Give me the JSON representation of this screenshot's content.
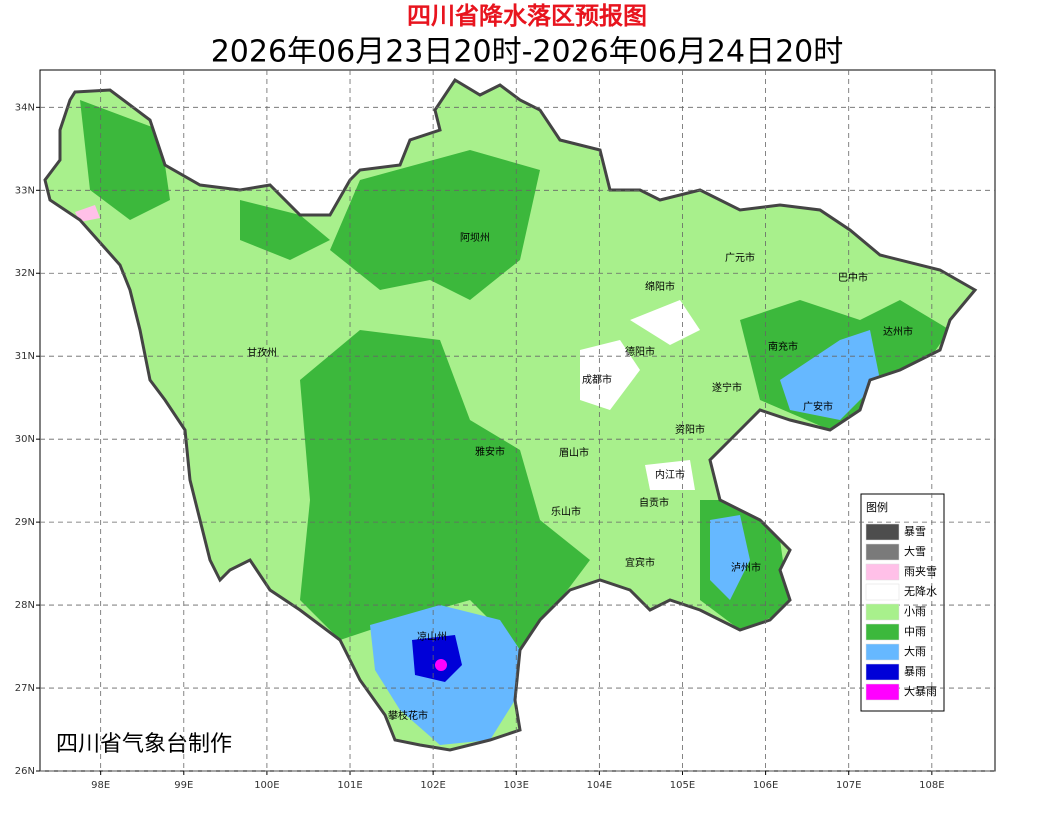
{
  "title": "四川省降水落区预报图",
  "subtitle": "2026年06月23日20时-2026年06月24日20时",
  "map": {
    "xlim": [
      97.27,
      108.76
    ],
    "ylim": [
      26,
      34.45
    ],
    "xticks": [
      {
        "value": 98,
        "label": "98E"
      },
      {
        "value": 99,
        "label": "99E"
      },
      {
        "value": 100,
        "label": "100E"
      },
      {
        "value": 101,
        "label": "101E"
      },
      {
        "value": 102,
        "label": "102E"
      },
      {
        "value": 103,
        "label": "103E"
      },
      {
        "value": 104,
        "label": "104E"
      },
      {
        "value": 105,
        "label": "105E"
      },
      {
        "value": 106,
        "label": "106E"
      },
      {
        "value": 107,
        "label": "107E"
      },
      {
        "value": 108,
        "label": "108E"
      }
    ],
    "yticks": [
      {
        "value": 26,
        "label": "26N"
      },
      {
        "value": 27,
        "label": "27N"
      },
      {
        "value": 28,
        "label": "28N"
      },
      {
        "value": 29,
        "label": "29N"
      },
      {
        "value": 30,
        "label": "30N"
      },
      {
        "value": 31,
        "label": "31N"
      },
      {
        "value": 32,
        "label": "32N"
      },
      {
        "value": 33,
        "label": "33N"
      },
      {
        "value": 34,
        "label": "34N"
      }
    ],
    "cities": [
      "阿坝州",
      "广元市",
      "巴中市",
      "绵阳市",
      "甘孜州",
      "德阳市",
      "南充市",
      "达州市",
      "成都市",
      "遂宁市",
      "广安市",
      "资阳市",
      "雅安市",
      "眉山市",
      "内江市",
      "自贡市",
      "乐山市",
      "宜宾市",
      "泸州市",
      "凉山州",
      "攀枝花市"
    ]
  },
  "legend": {
    "title": "图例",
    "items": [
      {
        "label": "暴雪",
        "color": "#4d4d4d"
      },
      {
        "label": "大雪",
        "color": "#7a7a7a"
      },
      {
        "label": "雨夹雪",
        "color": "#ffc0e8"
      },
      {
        "label": "无降水",
        "color": "#ffffff"
      },
      {
        "label": "小雨",
        "color": "#a8f08c"
      },
      {
        "label": "中雨",
        "color": "#3cb83c"
      },
      {
        "label": "大雨",
        "color": "#66b8ff"
      },
      {
        "label": "暴雨",
        "color": "#0000d8"
      },
      {
        "label": "大暴雨",
        "color": "#ff00ff"
      }
    ]
  },
  "credit": "四川省气象台制作"
}
